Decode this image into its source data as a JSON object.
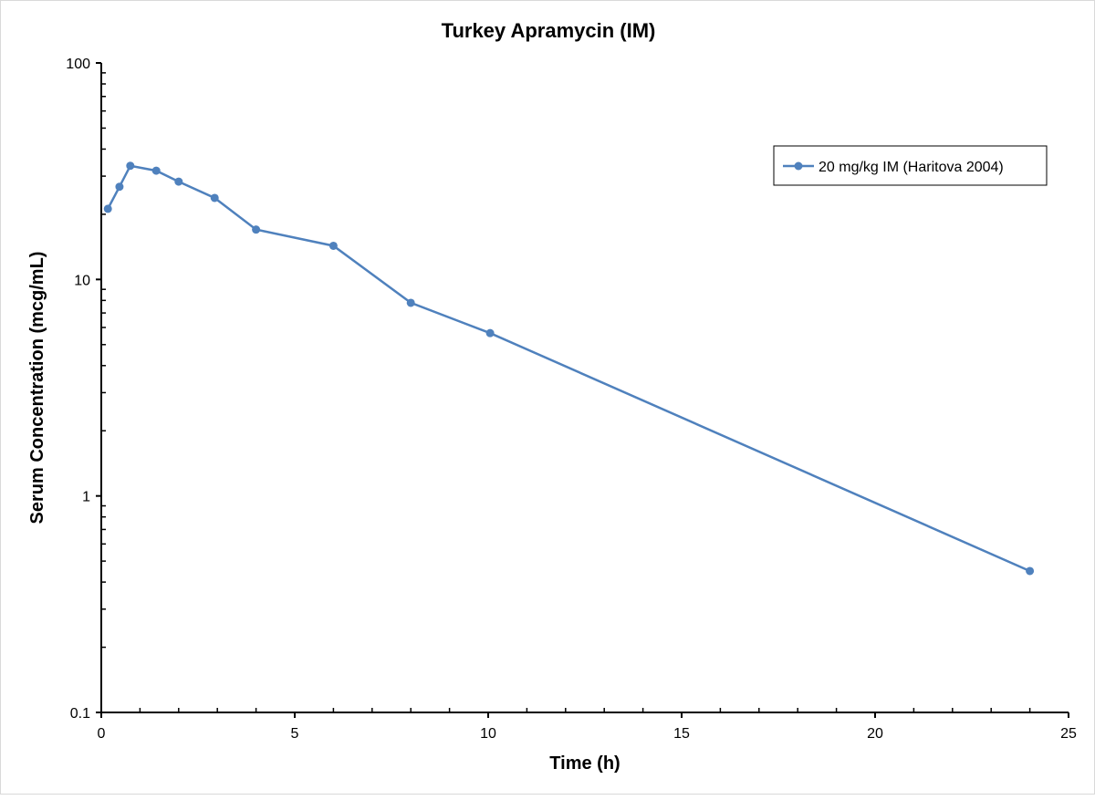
{
  "chart_data": {
    "type": "line",
    "title": "Turkey Apramycin (IM)",
    "xlabel": "Time (h)",
    "ylabel": "Serum Concentration (mcg/mL)",
    "xlim": [
      0,
      25
    ],
    "ylim": [
      0.1,
      100
    ],
    "yscale": "log",
    "xticks": [
      0,
      5,
      10,
      15,
      20,
      25
    ],
    "yticks": [
      0.1,
      1,
      10,
      100
    ],
    "xtick_labels": [
      "0",
      "5",
      "10",
      "15",
      "20",
      "25"
    ],
    "ytick_labels": [
      "0.1",
      "1",
      "10",
      "100"
    ],
    "grid": false,
    "legend_position": "top-right",
    "series": [
      {
        "name": "20 mg/kg IM (Haritova 2004)",
        "color": "#4f81bd",
        "x": [
          0.17,
          0.47,
          0.75,
          1.42,
          2.0,
          2.93,
          4.0,
          6.0,
          8.0,
          10.05,
          24.0
        ],
        "y": [
          21.2,
          26.8,
          33.5,
          31.8,
          28.3,
          23.8,
          17.0,
          14.3,
          7.8,
          5.65,
          0.45
        ]
      }
    ]
  }
}
